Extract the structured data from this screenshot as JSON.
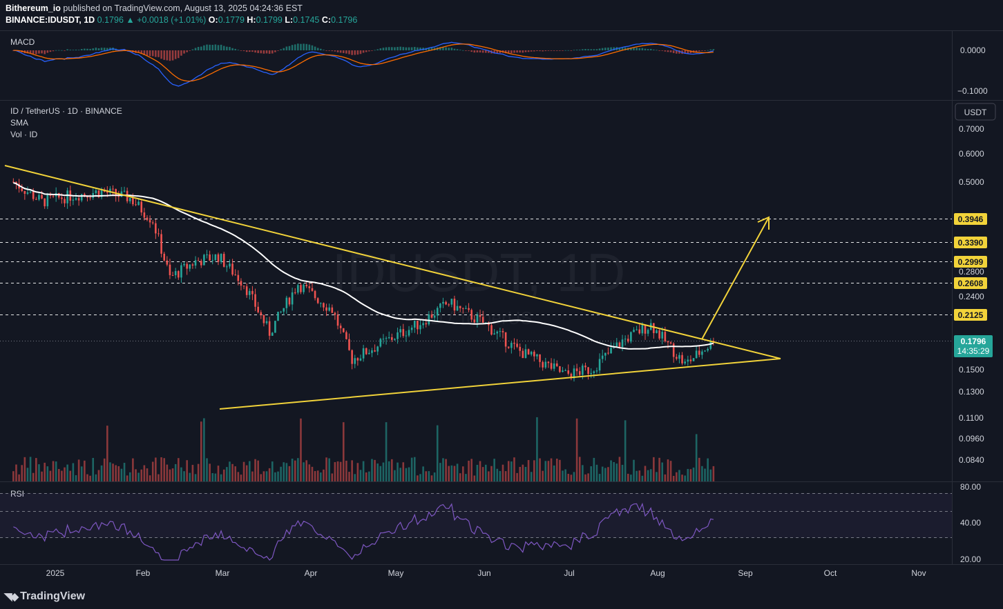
{
  "header": {
    "author": "Bithereum_io",
    "published_text": "published on TradingView.com, August 13, 2025 04:24:36 EST",
    "symbol": "BINANCE:IDUSDT, 1D",
    "last": "0.1796",
    "change": "▲ +0.0018 (+1.01%)",
    "o_label": "O:",
    "o": "0.1779",
    "h_label": "H:",
    "h": "0.1799",
    "l_label": "L:",
    "l": "0.1745",
    "c_label": "C:",
    "c": "0.1796"
  },
  "main_pane": {
    "title": "ID / TetherUS · 1D · BINANCE",
    "indicator_1": "SMA",
    "indicator_2": "Vol · ID",
    "watermark": "IDUSDT, 1D",
    "watermark_sub": "ID / TetherUS",
    "currency_button": "USDT",
    "price_labels": [
      "0.7000",
      "0.6000",
      "0.5000",
      "0.2800",
      "0.2400",
      "0.1500",
      "0.1300",
      "0.1100",
      "0.0960",
      "0.0840"
    ],
    "level_labels": [
      "0.3946",
      "0.3390",
      "0.2999",
      "0.2608",
      "0.2125"
    ],
    "current_price": "0.1796",
    "countdown": "14:35:29"
  },
  "macd_pane": {
    "title": "MACD",
    "labels": [
      "0.0000",
      "−0.1000"
    ]
  },
  "rsi_pane": {
    "title": "RSI",
    "labels": [
      "80.00",
      "40.00",
      "20.00"
    ]
  },
  "time_axis": [
    "2025",
    "Feb",
    "Mar",
    "Apr",
    "May",
    "Jun",
    "Jul",
    "Aug",
    "Sep",
    "Oct",
    "Nov"
  ],
  "footer": {
    "brand": "TradingView"
  },
  "colors": {
    "background": "#131722",
    "up": "#26a69a",
    "down": "#ef5350",
    "trendline": "#f2d33a",
    "sma": "#ffffff",
    "rsi": "#7e57c2",
    "macd": "#2962ff",
    "signal": "#ff6d00"
  },
  "chart_data": {
    "type": "candlestick",
    "symbol": "IDUSDT",
    "interval": "1D",
    "price_scale": "log",
    "ylim": [
      0.075,
      0.75
    ],
    "current_price": 0.1796,
    "horizontal_levels": [
      0.3946,
      0.339,
      0.2999,
      0.2608,
      0.2125
    ],
    "price_closes_approx": [
      {
        "date": "2024-12-10",
        "close": 0.5
      },
      {
        "date": "2024-12-20",
        "close": 0.44
      },
      {
        "date": "2025-01-01",
        "close": 0.46
      },
      {
        "date": "2025-01-10",
        "close": 0.47
      },
      {
        "date": "2025-01-20",
        "close": 0.45
      },
      {
        "date": "2025-01-28",
        "close": 0.39
      },
      {
        "date": "2025-02-03",
        "close": 0.27
      },
      {
        "date": "2025-02-12",
        "close": 0.3
      },
      {
        "date": "2025-02-20",
        "close": 0.31
      },
      {
        "date": "2025-03-01",
        "close": 0.26
      },
      {
        "date": "2025-03-10",
        "close": 0.19
      },
      {
        "date": "2025-03-20",
        "close": 0.26
      },
      {
        "date": "2025-04-01",
        "close": 0.22
      },
      {
        "date": "2025-04-08",
        "close": 0.16
      },
      {
        "date": "2025-04-20",
        "close": 0.18
      },
      {
        "date": "2025-05-01",
        "close": 0.2
      },
      {
        "date": "2025-05-12",
        "close": 0.23
      },
      {
        "date": "2025-05-25",
        "close": 0.2
      },
      {
        "date": "2025-06-05",
        "close": 0.17
      },
      {
        "date": "2025-06-22",
        "close": 0.145
      },
      {
        "date": "2025-07-01",
        "close": 0.15
      },
      {
        "date": "2025-07-12",
        "close": 0.18
      },
      {
        "date": "2025-07-22",
        "close": 0.2
      },
      {
        "date": "2025-08-03",
        "close": 0.155
      },
      {
        "date": "2025-08-13",
        "close": 0.1796
      }
    ],
    "trendlines": [
      {
        "name": "descending resistance",
        "from": {
          "date": "2024-12-07",
          "price": 0.57
        },
        "to": {
          "date": "2025-08-13",
          "price": 0.18
        }
      },
      {
        "name": "ascending support",
        "from": {
          "date": "2025-02-28",
          "price": 0.116
        },
        "to": {
          "date": "2025-09-15",
          "price": 0.165
        }
      },
      {
        "name": "projection",
        "from": {
          "date": "2025-08-13",
          "price": 0.18
        },
        "to": {
          "date": "2025-09-01",
          "price": 0.3946
        }
      }
    ],
    "rsi_levels": [
      70,
      50,
      30
    ]
  }
}
